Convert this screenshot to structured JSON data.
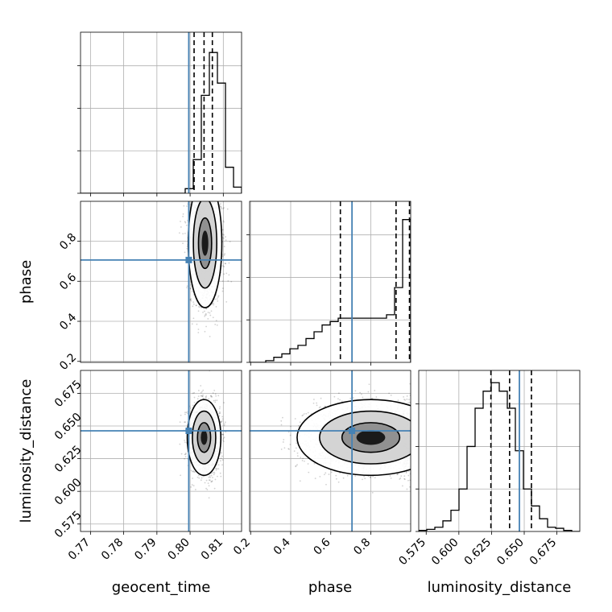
{
  "colors": {
    "truth": "#4682b4",
    "line": "#000000",
    "grid": "#b0b0b0",
    "points": "#000000"
  },
  "chart_data": {
    "type": "corner",
    "parameters": [
      "geocent_time",
      "phase",
      "luminosity_distance"
    ],
    "truths": {
      "geocent_time": 0.7996,
      "phase": 0.706,
      "luminosity_distance": 0.6463
    },
    "ranges": {
      "geocent_time": [
        0.767,
        0.8155
      ],
      "phase": [
        0.195,
        0.999
      ],
      "luminosity_distance": [
        0.5693,
        0.6925
      ]
    },
    "ticks": {
      "geocent_time": [
        "0.77",
        "0.78",
        "0.79",
        "0.80",
        "0.81"
      ],
      "phase": [
        "0.2",
        "0.4",
        "0.6",
        "0.8"
      ],
      "luminosity_distance": [
        "0.575",
        "0.600",
        "0.625",
        "0.650",
        "0.675"
      ]
    },
    "grid": true,
    "histograms": [
      {
        "param": "geocent_time",
        "bins": 20,
        "counts": [
          0,
          0,
          0,
          0,
          0,
          0,
          0,
          0,
          0,
          0,
          0,
          0,
          0,
          0.03,
          0.22,
          0.64,
          0.92,
          0.72,
          0.17,
          0.04
        ],
        "ymax": 1.0,
        "quantiles": [
          0.8012,
          0.8042,
          0.8067
        ]
      },
      {
        "param": "phase",
        "bins": 20,
        "counts": [
          0,
          0,
          0.005,
          0.015,
          0.025,
          0.04,
          0.05,
          0.07,
          0.09,
          0.11,
          0.12,
          0.13,
          0.13,
          0.13,
          0.13,
          0.13,
          0.13,
          0.14,
          0.22,
          0.42
        ],
        "ymax": 0.45,
        "quantiles": [
          0.648,
          0.926,
          0.993
        ]
      },
      {
        "param": "luminosity_distance",
        "bins": 20,
        "counts": [
          0.005,
          0.01,
          0.02,
          0.05,
          0.1,
          0.2,
          0.4,
          0.58,
          0.66,
          0.7,
          0.66,
          0.58,
          0.38,
          0.2,
          0.12,
          0.06,
          0.02,
          0.015,
          0.005,
          0
        ],
        "ymax": 0.72,
        "quantiles": [
          0.6245,
          0.6388,
          0.6555
        ]
      }
    ],
    "scatter_2d": [
      {
        "x": "geocent_time",
        "y": "phase",
        "mean": [
          0.8045,
          0.79
        ],
        "sd": [
          0.0022,
          0.14
        ],
        "clip": [
          0.2,
          0.999
        ]
      },
      {
        "x": "geocent_time",
        "y": "luminosity_distance",
        "mean": [
          0.8042,
          0.6412
        ],
        "sd": [
          0.0022,
          0.0126
        ]
      },
      {
        "x": "phase",
        "y": "luminosity_distance",
        "mean": [
          0.8,
          0.6412
        ],
        "sd": [
          0.16,
          0.0126
        ],
        "clip": [
          0.2,
          0.999
        ]
      }
    ]
  }
}
